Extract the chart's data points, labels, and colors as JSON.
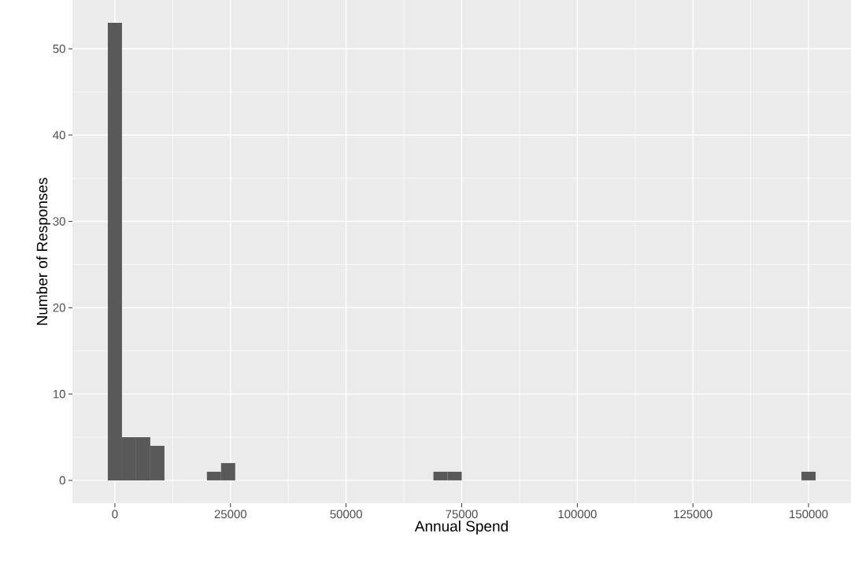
{
  "chart_data": {
    "type": "histogram",
    "xlabel": "Annual Spend",
    "ylabel": "Number of Responses",
    "bins": [
      -1531,
      1531,
      4592,
      7653,
      10714,
      13775,
      16837,
      19898,
      22959,
      26020,
      29081,
      32143,
      35204,
      38265,
      41326,
      44388,
      47449,
      50510,
      53571,
      56633,
      59694,
      62755,
      65816,
      68878,
      71939,
      75000,
      78061,
      81122,
      84184,
      87245,
      90306,
      93367,
      96429,
      99490,
      102551,
      105612,
      108673,
      111735,
      114796,
      117857,
      120918,
      123980,
      127041,
      130102,
      133163,
      136224,
      139286,
      142347,
      145408,
      148469,
      151531
    ],
    "values": [
      53,
      5,
      5,
      4,
      0,
      0,
      0,
      1,
      2,
      0,
      0,
      0,
      0,
      0,
      0,
      0,
      0,
      0,
      0,
      0,
      0,
      0,
      0,
      1,
      1,
      0,
      0,
      0,
      0,
      0,
      0,
      0,
      0,
      0,
      0,
      0,
      0,
      0,
      0,
      0,
      0,
      0,
      0,
      0,
      0,
      0,
      0,
      0,
      0,
      1
    ],
    "color": "#595959",
    "xlim": [
      -9184,
      159184
    ],
    "ylim": [
      -2.65,
      55.65
    ],
    "xticks": [
      0,
      25000,
      50000,
      75000,
      100000,
      125000,
      150000
    ],
    "yticks": [
      0,
      10,
      20,
      30,
      40,
      50
    ],
    "grid": true
  }
}
